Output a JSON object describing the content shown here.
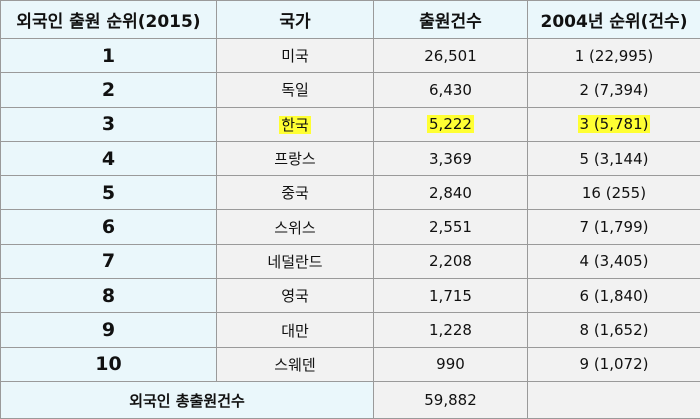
{
  "table": {
    "headers": {
      "rank": "외국인 출원 순위(2015)",
      "country": "국가",
      "count": "출원건수",
      "rank_2004": "2004년 순위(건수)"
    },
    "rows": [
      {
        "rank": "1",
        "country": "미국",
        "count": "26,501",
        "rank_2004": "1 (22,995)",
        "highlight": false
      },
      {
        "rank": "2",
        "country": "독일",
        "count": "6,430",
        "rank_2004": "2 (7,394)",
        "highlight": false
      },
      {
        "rank": "3",
        "country": "한국",
        "count": "5,222",
        "rank_2004": "3 (5,781)",
        "highlight": true
      },
      {
        "rank": "4",
        "country": "프랑스",
        "count": "3,369",
        "rank_2004": "5 (3,144)",
        "highlight": false
      },
      {
        "rank": "5",
        "country": "중국",
        "count": "2,840",
        "rank_2004": "16 (255)",
        "highlight": false
      },
      {
        "rank": "6",
        "country": "스위스",
        "count": "2,551",
        "rank_2004": "7 (1,799)",
        "highlight": false
      },
      {
        "rank": "7",
        "country": "네덜란드",
        "count": "2,208",
        "rank_2004": "4 (3,405)",
        "highlight": false
      },
      {
        "rank": "8",
        "country": "영국",
        "count": "1,715",
        "rank_2004": "6 (1,840)",
        "highlight": false
      },
      {
        "rank": "9",
        "country": "대만",
        "count": "1,228",
        "rank_2004": "8 (1,652)",
        "highlight": false
      },
      {
        "rank": "10",
        "country": "스웨덴",
        "count": "990",
        "rank_2004": "9 (1,072)",
        "highlight": false
      }
    ],
    "footer": {
      "label": "외국인 총출원건수",
      "total": "59,882"
    }
  },
  "colors": {
    "rank_column_bg": "#eaf7fb",
    "data_cell_bg": "#f2f2f2",
    "highlight": "#ffff33",
    "border": "#9a9a9a"
  }
}
